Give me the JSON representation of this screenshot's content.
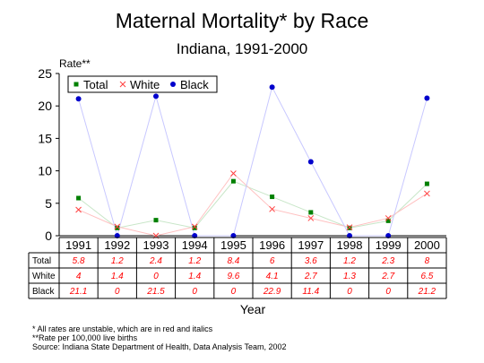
{
  "chart_data": {
    "type": "line",
    "title": "Maternal Mortality* by Race",
    "subtitle": "Indiana, 1991-2000",
    "ylabel": "Rate**",
    "xlabel": "Year",
    "ylim": [
      0,
      25
    ],
    "yticks": [
      "0",
      "5",
      "10",
      "15",
      "20",
      "25"
    ],
    "categories": [
      "1991",
      "1992",
      "1993",
      "1994",
      "1995",
      "1996",
      "1997",
      "1998",
      "1999",
      "2000"
    ],
    "legend_position": "top-left",
    "grid": false,
    "series": [
      {
        "name": "Total",
        "marker": "square",
        "color": "#008000",
        "line_color": "#c8e6c8",
        "values": [
          5.8,
          1.2,
          2.4,
          1.2,
          8.4,
          6,
          3.6,
          1.2,
          2.3,
          8
        ],
        "table_values": [
          "5.8",
          "1.2",
          "2.4",
          "1.2",
          "8.4",
          "6",
          "3.6",
          "1.2",
          "2.3",
          "8"
        ]
      },
      {
        "name": "White",
        "marker": "x",
        "color": "#ff4040",
        "line_color": "#ffc0c0",
        "values": [
          4,
          1.4,
          0,
          1.4,
          9.6,
          4.1,
          2.7,
          1.3,
          2.7,
          6.5
        ],
        "table_values": [
          "4",
          "1.4",
          "0",
          "1.4",
          "9.6",
          "4.1",
          "2.7",
          "1.3",
          "2.7",
          "6.5"
        ]
      },
      {
        "name": "Black",
        "marker": "circle",
        "color": "#0000cc",
        "line_color": "#c8c8ff",
        "values": [
          21.1,
          0,
          21.5,
          0,
          0,
          22.9,
          11.4,
          0,
          0,
          21.2
        ],
        "table_values": [
          "21.1",
          "0",
          "21.5",
          "0",
          "0",
          "22.9",
          "11.4",
          "0",
          "0",
          "21.2"
        ]
      }
    ],
    "table_value_color": "#ff0000"
  },
  "footnotes": [
    "* All rates are unstable, which are in red and italics",
    "**Rate per 100,000 live births",
    "Source:  Indiana State Department of Health, Data Analysis Team, 2002"
  ]
}
